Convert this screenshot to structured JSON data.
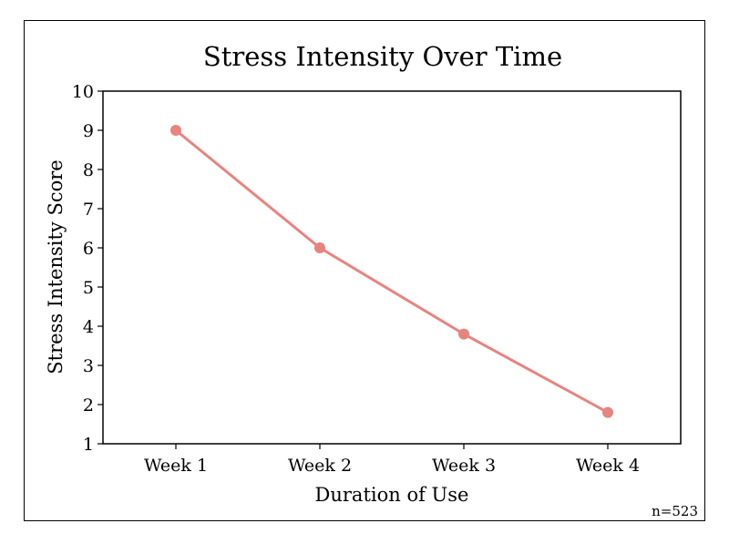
{
  "chart_data": {
    "type": "line",
    "title": "Stress Intensity Over Time",
    "xlabel": "Duration of Use",
    "ylabel": "Stress Intensity Score",
    "categories": [
      "Week 1",
      "Week 2",
      "Week 3",
      "Week 4"
    ],
    "values": [
      9,
      6,
      3.8,
      1.8
    ],
    "ylim": [
      1,
      10
    ],
    "yticks": [
      "1",
      "2",
      "3",
      "4",
      "5",
      "6",
      "7",
      "8",
      "9",
      "10"
    ],
    "grid": false,
    "color": "#e8837e",
    "annotation": "n=523"
  }
}
